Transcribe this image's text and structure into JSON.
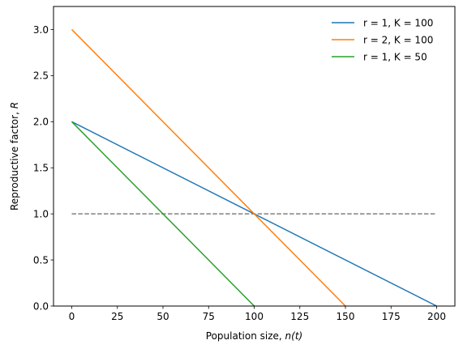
{
  "chart_data": {
    "type": "line",
    "title": "",
    "xlabel_main": "Population size, ",
    "xlabel_var": "n(t)",
    "ylabel_main": "Reproductive factor, ",
    "ylabel_var": "R",
    "xlim": [
      -10,
      210
    ],
    "ylim": [
      0,
      3.25
    ],
    "xticks": [
      0,
      25,
      50,
      75,
      100,
      125,
      150,
      175,
      200
    ],
    "xtick_labels": [
      "0",
      "25",
      "50",
      "75",
      "100",
      "125",
      "150",
      "175",
      "200"
    ],
    "yticks": [
      0,
      0.5,
      1,
      1.5,
      2,
      2.5,
      3
    ],
    "ytick_labels": [
      "0.0",
      "0.5",
      "1.0",
      "1.5",
      "2.0",
      "2.5",
      "3.0"
    ],
    "grid": false,
    "legend_position": "top-right",
    "series": [
      {
        "name": "r = 1, K = 100",
        "color": "#1f77b4",
        "x": [
          0,
          200
        ],
        "y": [
          2,
          0
        ]
      },
      {
        "name": "r = 2, K = 100",
        "color": "#ff7f0e",
        "x": [
          0,
          150
        ],
        "y": [
          3,
          0
        ]
      },
      {
        "name": "r = 1, K = 50",
        "color": "#2ca02c",
        "x": [
          0,
          100
        ],
        "y": [
          2,
          0
        ]
      }
    ],
    "reference_line": {
      "color": "#808080",
      "style": "dashed",
      "x": [
        0,
        200
      ],
      "y": [
        1,
        1
      ]
    }
  }
}
